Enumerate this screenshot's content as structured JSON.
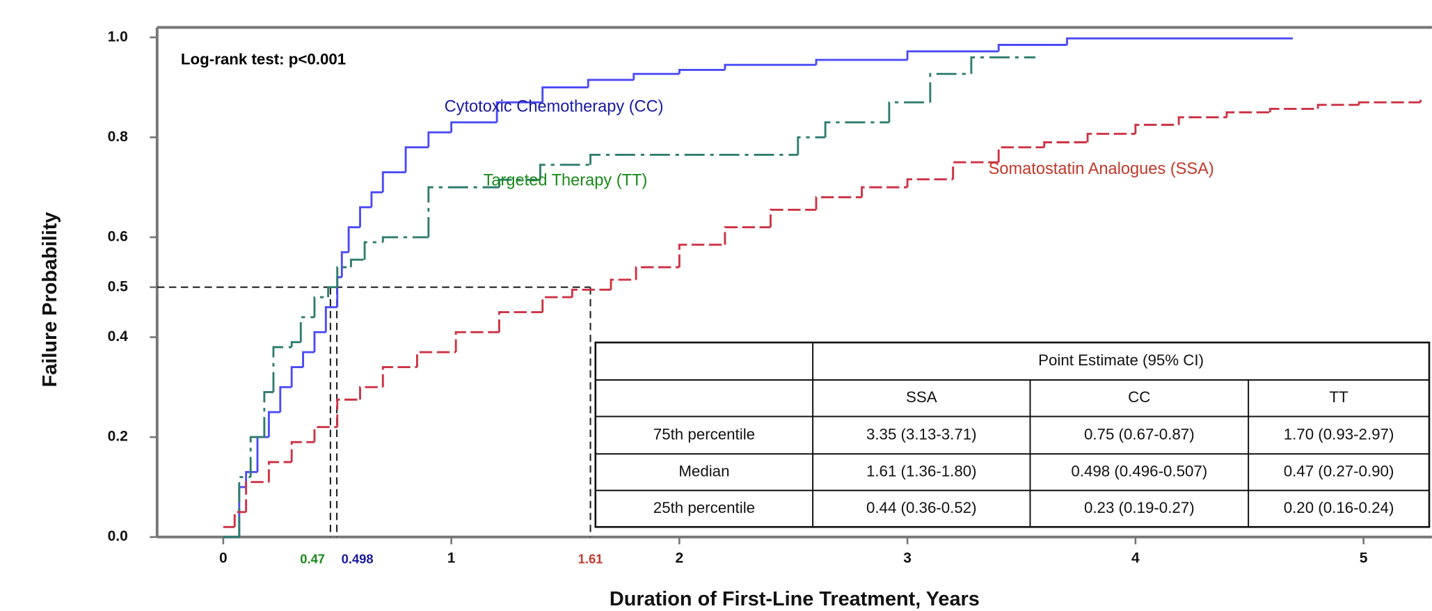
{
  "chart_data": {
    "type": "step",
    "annotation": "Log-rank test: p<0.001",
    "x_label": "Duration of First-Line Treatment, Years",
    "y_label": "Failure Probability",
    "xlim": [
      -0.29,
      5.3
    ],
    "ylim": [
      0,
      1.02
    ],
    "xticks": [
      0,
      1,
      2,
      3,
      4,
      5
    ],
    "yticks": [
      {
        "value": 0,
        "label": "0.0"
      },
      0.2,
      0.4,
      0.5,
      0.6,
      0.8,
      {
        "value": 1,
        "label": "1.0"
      }
    ],
    "series": [
      {
        "name": "Cytotoxic Chemotherapy (CC)",
        "color": "#4b4bf5",
        "label_color": "#1a1aa0",
        "dash": "none",
        "label_x": 1.45,
        "label_y": 0.86,
        "x": [
          0,
          0.07,
          0.1,
          0.15,
          0.2,
          0.25,
          0.3,
          0.35,
          0.4,
          0.45,
          0.5,
          0.52,
          0.55,
          0.6,
          0.65,
          0.7,
          0.8,
          0.9,
          1.0,
          1.2,
          1.4,
          1.6,
          1.8,
          2.0,
          2.2,
          2.6,
          3.0,
          3.4,
          3.7,
          4.69
        ],
        "values": [
          0,
          0.1,
          0.13,
          0.2,
          0.25,
          0.3,
          0.34,
          0.37,
          0.41,
          0.46,
          0.52,
          0.57,
          0.62,
          0.66,
          0.69,
          0.73,
          0.78,
          0.81,
          0.83,
          0.87,
          0.9,
          0.915,
          0.927,
          0.935,
          0.945,
          0.955,
          0.972,
          0.985,
          0.998,
          0.998
        ]
      },
      {
        "name": "Targeted Therapy (TT)",
        "color": "#2e7d6e",
        "label_color": "#1a8a1a",
        "dash": "22 6 4 6",
        "label_x": 1.5,
        "label_y": 0.712,
        "x": [
          0,
          0.07,
          0.12,
          0.18,
          0.22,
          0.3,
          0.34,
          0.4,
          0.46,
          0.5,
          0.56,
          0.62,
          0.7,
          0.9,
          1.21,
          1.39,
          1.61,
          2.52,
          2.64,
          2.92,
          3.1,
          3.28,
          3.56
        ],
        "values": [
          0,
          0.12,
          0.2,
          0.29,
          0.38,
          0.39,
          0.44,
          0.48,
          0.5,
          0.54,
          0.555,
          0.59,
          0.6,
          0.7,
          0.715,
          0.745,
          0.765,
          0.8,
          0.83,
          0.87,
          0.927,
          0.96,
          0.96
        ]
      },
      {
        "name": "Somatostatin Analogues (SSA)",
        "color": "#cc3344",
        "label_color": "#c0392b",
        "dash": "14 5",
        "label_x": 3.85,
        "label_y": 0.735,
        "x": [
          0,
          0.05,
          0.1,
          0.2,
          0.3,
          0.4,
          0.5,
          0.6,
          0.7,
          0.85,
          1.02,
          1.21,
          1.4,
          1.53,
          1.7,
          1.81,
          2.0,
          2.2,
          2.4,
          2.6,
          2.8,
          3.0,
          3.2,
          3.4,
          3.6,
          3.79,
          4.0,
          4.19,
          4.4,
          4.59,
          4.8,
          4.98,
          5.25
        ],
        "values": [
          0.02,
          0.05,
          0.11,
          0.15,
          0.19,
          0.22,
          0.275,
          0.3,
          0.34,
          0.37,
          0.41,
          0.45,
          0.48,
          0.495,
          0.515,
          0.54,
          0.585,
          0.62,
          0.655,
          0.68,
          0.7,
          0.716,
          0.75,
          0.78,
          0.79,
          0.807,
          0.825,
          0.84,
          0.85,
          0.857,
          0.865,
          0.87,
          0.875
        ]
      }
    ],
    "median": {
      "y": 0.5,
      "markers": [
        {
          "x": 0.47,
          "color": "#1a8a1a"
        },
        {
          "x": 0.498,
          "color": "#1a1aa0"
        },
        {
          "x": 1.61,
          "color": "#c0392b"
        }
      ]
    },
    "table": {
      "header": "Point Estimate (95% CI)",
      "columns": [
        "SSA",
        "CC",
        "TT"
      ],
      "rows": [
        {
          "label": "75th percentile",
          "cells": [
            "3.35 (3.13-3.71)",
            "0.75 (0.67-0.87)",
            "1.70 (0.93-2.97)"
          ]
        },
        {
          "label": "Median",
          "cells": [
            "1.61 (1.36-1.80)",
            "0.498 (0.496-0.507)",
            "0.47 (0.27-0.90)"
          ]
        },
        {
          "label": "25th percentile",
          "cells": [
            "0.44 (0.36-0.52)",
            "0.23 (0.19-0.27)",
            "0.20 (0.16-0.24)"
          ]
        }
      ]
    }
  }
}
